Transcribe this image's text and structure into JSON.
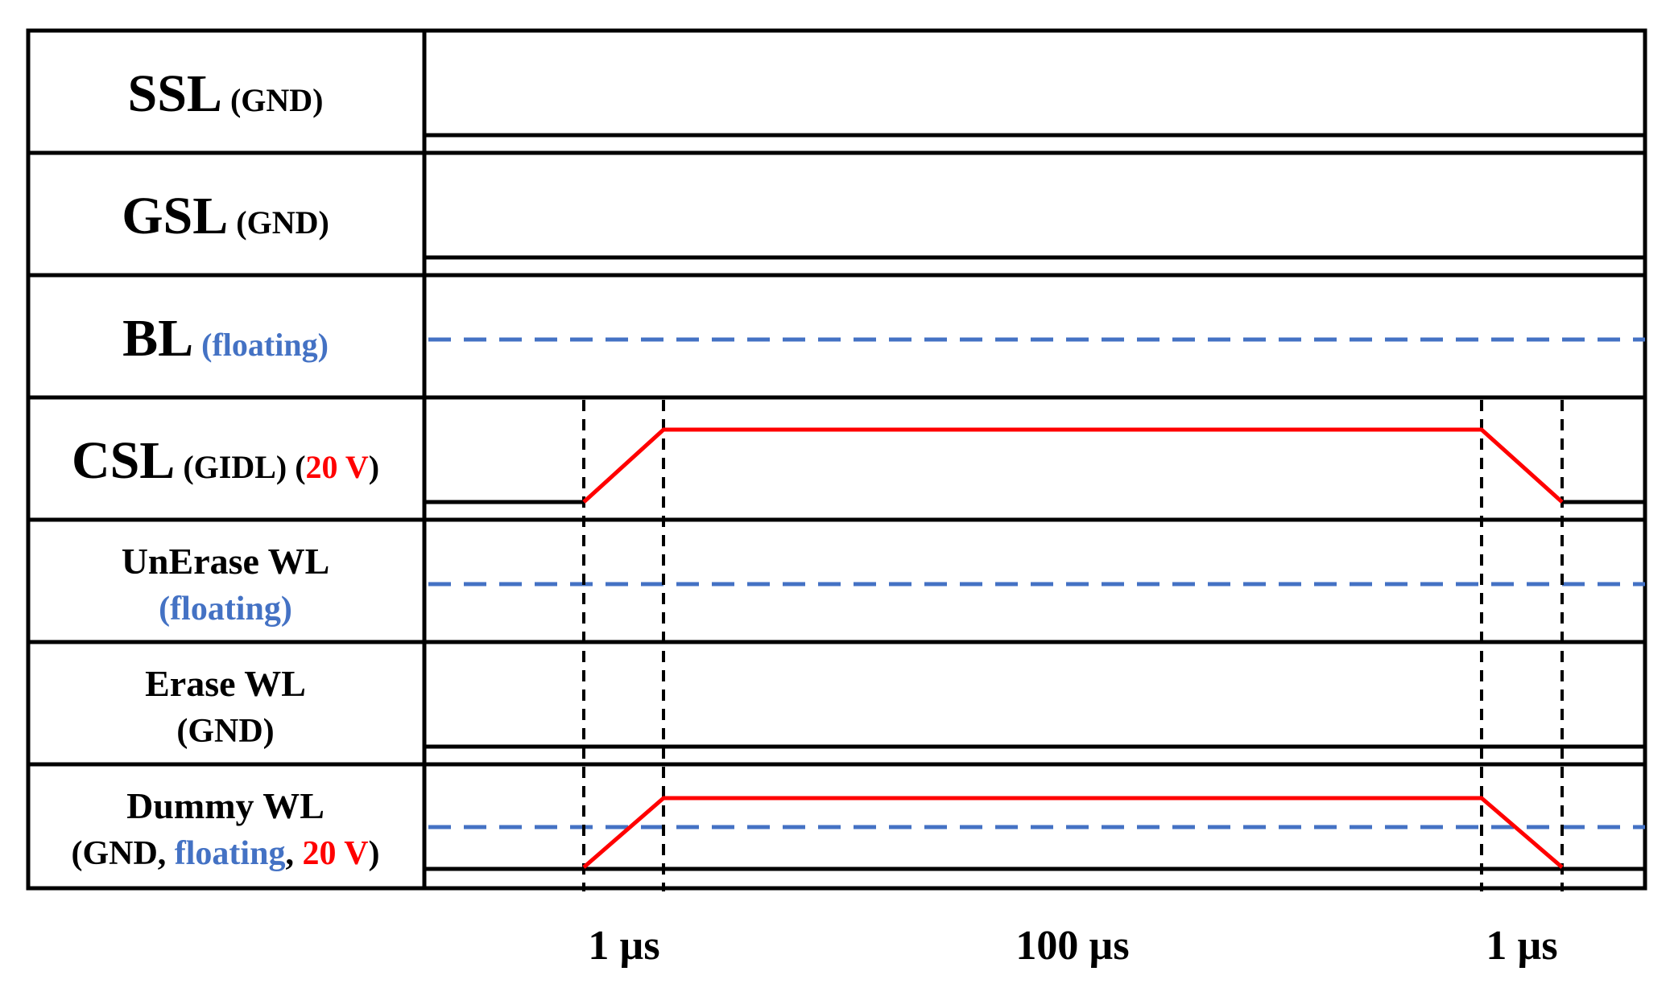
{
  "colors": {
    "signal_high": "#ff0000",
    "floating": "#4472c4",
    "line": "#000000"
  },
  "rows": [
    {
      "id": "ssl",
      "label": "SSL",
      "note": "(GND)",
      "note_color": "black",
      "waveform": "gnd"
    },
    {
      "id": "gsl",
      "label": "GSL",
      "note": "(GND)",
      "note_color": "black",
      "waveform": "gnd"
    },
    {
      "id": "bl",
      "label": "BL",
      "note": "(floating)",
      "note_color": "blue",
      "waveform": "floating"
    },
    {
      "id": "csl",
      "label": "CSL",
      "note_parts": [
        "(GIDL) (",
        "20 V",
        ")"
      ],
      "waveform": "pulse"
    },
    {
      "id": "unerase-wl",
      "label": "UnErase WL",
      "note": "(floating)",
      "note_color": "blue",
      "waveform": "floating"
    },
    {
      "id": "erase-wl",
      "label": "Erase WL",
      "note": "(GND)",
      "note_color": "black",
      "waveform": "gnd"
    },
    {
      "id": "dummy-wl",
      "label": "Dummy WL",
      "note_parts": [
        "(GND, ",
        "floating",
        ", ",
        "20 V",
        ")"
      ],
      "waveform": "dummy"
    }
  ],
  "timing": {
    "phases": [
      "1 µs",
      "100 µs",
      "1 µs"
    ]
  }
}
